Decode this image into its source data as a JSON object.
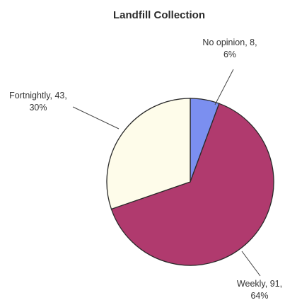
{
  "chart_data": {
    "type": "pie",
    "title": "Landfill Collection",
    "slices": [
      {
        "category": "No opinion",
        "value": 8,
        "percent": "6%",
        "color": "#7b8ff0"
      },
      {
        "category": "Weekly",
        "value": 91,
        "percent": "64%",
        "color": "#b03a6e"
      },
      {
        "category": "Fortnightly",
        "value": 43,
        "percent": "30%",
        "color": "#fefcea"
      }
    ],
    "data_labels": [
      {
        "line1": "No opinion, 8,",
        "line2": "6%"
      },
      {
        "line1": "Weekly, 91,",
        "line2": "64%"
      },
      {
        "line1": "Fortnightly, 43,",
        "line2": "30%"
      }
    ],
    "legend": "none"
  }
}
